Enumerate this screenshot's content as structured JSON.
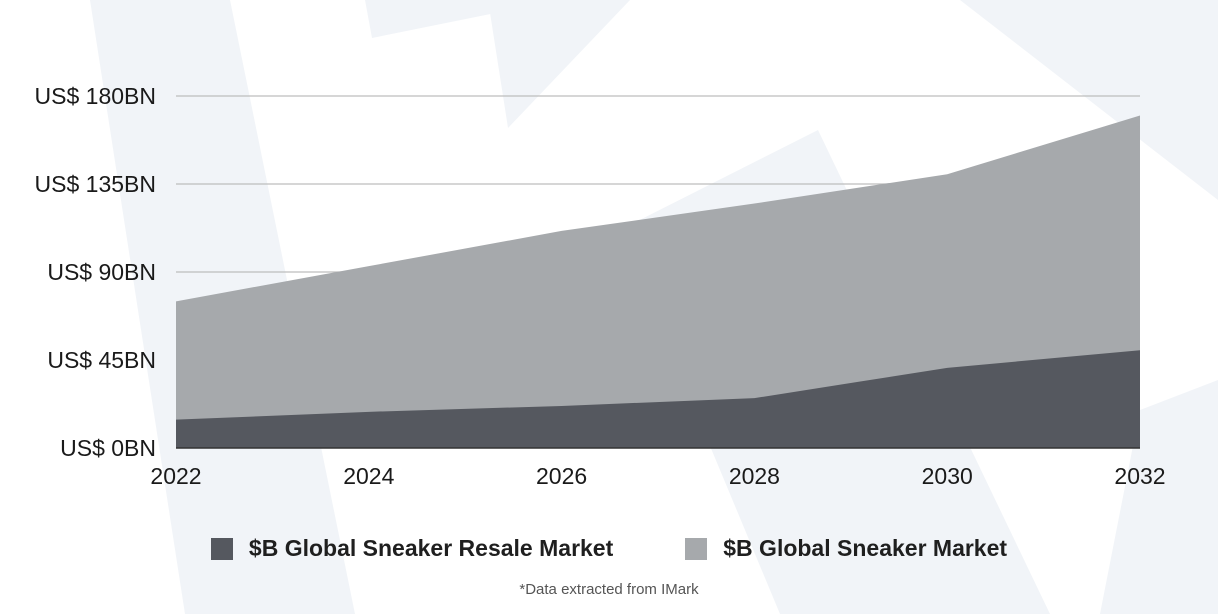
{
  "colors": {
    "resale": "#55585f",
    "market": "#a6a9ac",
    "grid": "#bdbdbd",
    "axis": "#333333",
    "watermark": "#f1f4f8"
  },
  "chart_data": {
    "type": "area",
    "stacked": false,
    "x": [
      2022,
      2024,
      2026,
      2028,
      2030,
      2032
    ],
    "x_tick_labels": [
      "2022",
      "2024",
      "2026",
      "2028",
      "2030",
      "2032"
    ],
    "ylim": [
      0,
      180
    ],
    "y_ticks": [
      0,
      45,
      90,
      135,
      180
    ],
    "y_tick_labels": [
      "US$ 0BN",
      "US$ 45BN",
      "US$ 90BN",
      "US$ 135BN",
      "US$ 180BN"
    ],
    "grid": true,
    "legend_position": "bottom-center",
    "series": [
      {
        "name": "$B Global Sneaker Market",
        "color_key": "market",
        "x": [
          2022,
          2024,
          2026,
          2028,
          2030,
          2032
        ],
        "values": [
          75,
          93,
          111,
          125,
          140,
          170
        ]
      },
      {
        "name": "$B Global Sneaker Resale Market",
        "color_key": "resale",
        "x": [
          2022,
          2024,
          2026,
          2028,
          2030,
          2032
        ],
        "values": [
          14.5,
          18.5,
          21.5,
          25.5,
          41,
          50
        ]
      }
    ]
  },
  "legend": {
    "items": [
      {
        "label": "$B Global Sneaker Resale Market",
        "color_key": "resale"
      },
      {
        "label": "$B Global Sneaker Market",
        "color_key": "market"
      }
    ]
  },
  "footnote": "*Data extracted from IMark"
}
